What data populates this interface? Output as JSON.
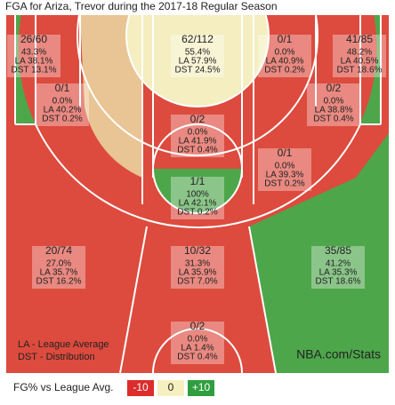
{
  "title": "FGA for Ariza, Trevor during the 2017-18 Regular Season",
  "zones": [
    {
      "fg": "26/60",
      "pct": "43.3%",
      "la": "LA 38.1%",
      "dst": "DST 13.1%"
    },
    {
      "fg": "62/112",
      "pct": "55.4%",
      "la": "LA 57.9%",
      "dst": "DST 24.5%"
    },
    {
      "fg": "0/1",
      "pct": "0.0%",
      "la": "LA 40.9%",
      "dst": "DST 0.2%"
    },
    {
      "fg": "41/85",
      "pct": "48.2%",
      "la": "LA 40.5%",
      "dst": "DST 18.6%"
    },
    {
      "fg": "0/1",
      "pct": "0.0%",
      "la": "LA 40.2%",
      "dst": "DST 0.2%"
    },
    {
      "fg": "0/2",
      "pct": "0.0%",
      "la": "LA 38.8%",
      "dst": "DST 0.4%"
    },
    {
      "fg": "0/2",
      "pct": "0.0%",
      "la": "LA 41.9%",
      "dst": "DST 0.4%"
    },
    {
      "fg": "0/1",
      "pct": "0.0%",
      "la": "LA 39.3%",
      "dst": "DST 0.2%"
    },
    {
      "fg": "1/1",
      "pct": "100%",
      "la": "LA 42.1%",
      "dst": "DST 0.2%"
    },
    {
      "fg": "20/74",
      "pct": "27.0%",
      "la": "LA 35.7%",
      "dst": "DST 16.2%"
    },
    {
      "fg": "10/32",
      "pct": "31.3%",
      "la": "LA 35.9%",
      "dst": "DST 7.0%"
    },
    {
      "fg": "35/85",
      "pct": "41.2%",
      "la": "LA 35.3%",
      "dst": "DST 18.6%"
    },
    {
      "fg": "0/2",
      "pct": "0.0%",
      "la": "LA 1.4%",
      "dst": "DST 0.4%"
    }
  ],
  "notes": [
    "LA - League Average",
    "DST - Distribution"
  ],
  "watermark": "NBA.com/Stats",
  "legend": {
    "label": "FG% vs League Avg.",
    "items": [
      "-10",
      "0",
      "+10"
    ]
  }
}
